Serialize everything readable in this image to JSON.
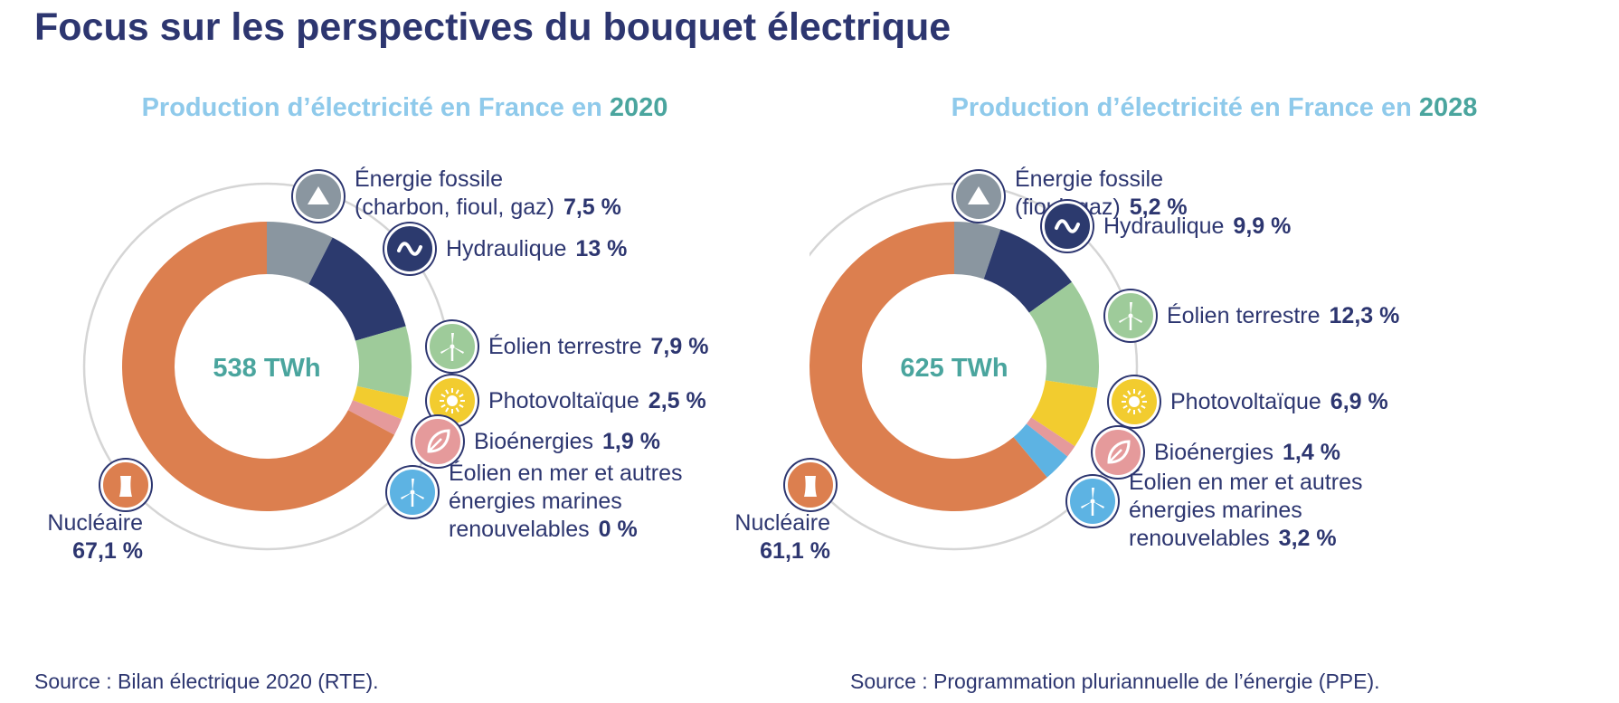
{
  "title": "Focus sur les perspectives du bouquet électrique",
  "chart_data": [
    {
      "type": "pie",
      "title_prefix": "Production d’électricité en France en",
      "year": "2020",
      "total_label": "538 TWh",
      "source": "Source : Bilan électrique 2020 (RTE).",
      "slices": [
        {
          "key": "fossil",
          "label_lines": [
            "Énergie fossile",
            "(charbon, fioul, gaz)"
          ],
          "value": 7.5,
          "value_label": "7,5 %",
          "color": "#8a96a0",
          "icon": "triangle-icon"
        },
        {
          "key": "hydro",
          "label_lines": [
            "Hydraulique"
          ],
          "value": 13,
          "value_label": "13 %",
          "color": "#2c3a6e",
          "icon": "wave-icon"
        },
        {
          "key": "wind_onshore",
          "label_lines": [
            "Éolien terrestre"
          ],
          "value": 7.9,
          "value_label": "7,9 %",
          "color": "#9ecb9a",
          "icon": "wind-turbine-icon"
        },
        {
          "key": "solar",
          "label_lines": [
            "Photovoltaïque"
          ],
          "value": 2.5,
          "value_label": "2,5 %",
          "color": "#f2cc2f",
          "icon": "sun-icon"
        },
        {
          "key": "bio",
          "label_lines": [
            "Bioénergies"
          ],
          "value": 1.9,
          "value_label": "1,9 %",
          "color": "#e59a9b",
          "icon": "leaf-icon"
        },
        {
          "key": "offshore",
          "label_lines": [
            "Éolien en mer et autres",
            "énergies marines",
            "renouvelables"
          ],
          "value": 0,
          "value_label": "0 %",
          "color": "#5db3e3",
          "icon": "offshore-wind-icon"
        },
        {
          "key": "nuclear",
          "label_lines": [
            "Nucléaire"
          ],
          "value": 67.1,
          "value_label": "67,1 %",
          "color": "#dc7f4f",
          "icon": "cooling-tower-icon"
        }
      ]
    },
    {
      "type": "pie",
      "title_prefix": "Production d’électricité en France en",
      "year": "2028",
      "total_label": "625 TWh",
      "source": "Source : Programmation pluriannuelle de l’énergie (PPE).",
      "slices": [
        {
          "key": "fossil",
          "label_lines": [
            "Énergie fossile",
            "(fioul, gaz)"
          ],
          "value": 5.2,
          "value_label": "5,2 %",
          "color": "#8a96a0",
          "icon": "triangle-icon"
        },
        {
          "key": "hydro",
          "label_lines": [
            "Hydraulique"
          ],
          "value": 9.9,
          "value_label": "9,9 %",
          "color": "#2c3a6e",
          "icon": "wave-icon"
        },
        {
          "key": "wind_onshore",
          "label_lines": [
            "Éolien terrestre"
          ],
          "value": 12.3,
          "value_label": "12,3 %",
          "color": "#9ecb9a",
          "icon": "wind-turbine-icon"
        },
        {
          "key": "solar",
          "label_lines": [
            "Photovoltaïque"
          ],
          "value": 6.9,
          "value_label": "6,9 %",
          "color": "#f2cc2f",
          "icon": "sun-icon"
        },
        {
          "key": "bio",
          "label_lines": [
            "Bioénergies"
          ],
          "value": 1.4,
          "value_label": "1,4 %",
          "color": "#e59a9b",
          "icon": "leaf-icon"
        },
        {
          "key": "offshore",
          "label_lines": [
            "Éolien en mer et autres",
            "énergies marines",
            "renouvelables"
          ],
          "value": 3.2,
          "value_label": "3,2 %",
          "color": "#5db3e3",
          "icon": "offshore-wind-icon"
        },
        {
          "key": "nuclear",
          "label_lines": [
            "Nucléaire"
          ],
          "value": 61.1,
          "value_label": "61,1 %",
          "color": "#dc7f4f",
          "icon": "cooling-tower-icon"
        }
      ]
    }
  ]
}
